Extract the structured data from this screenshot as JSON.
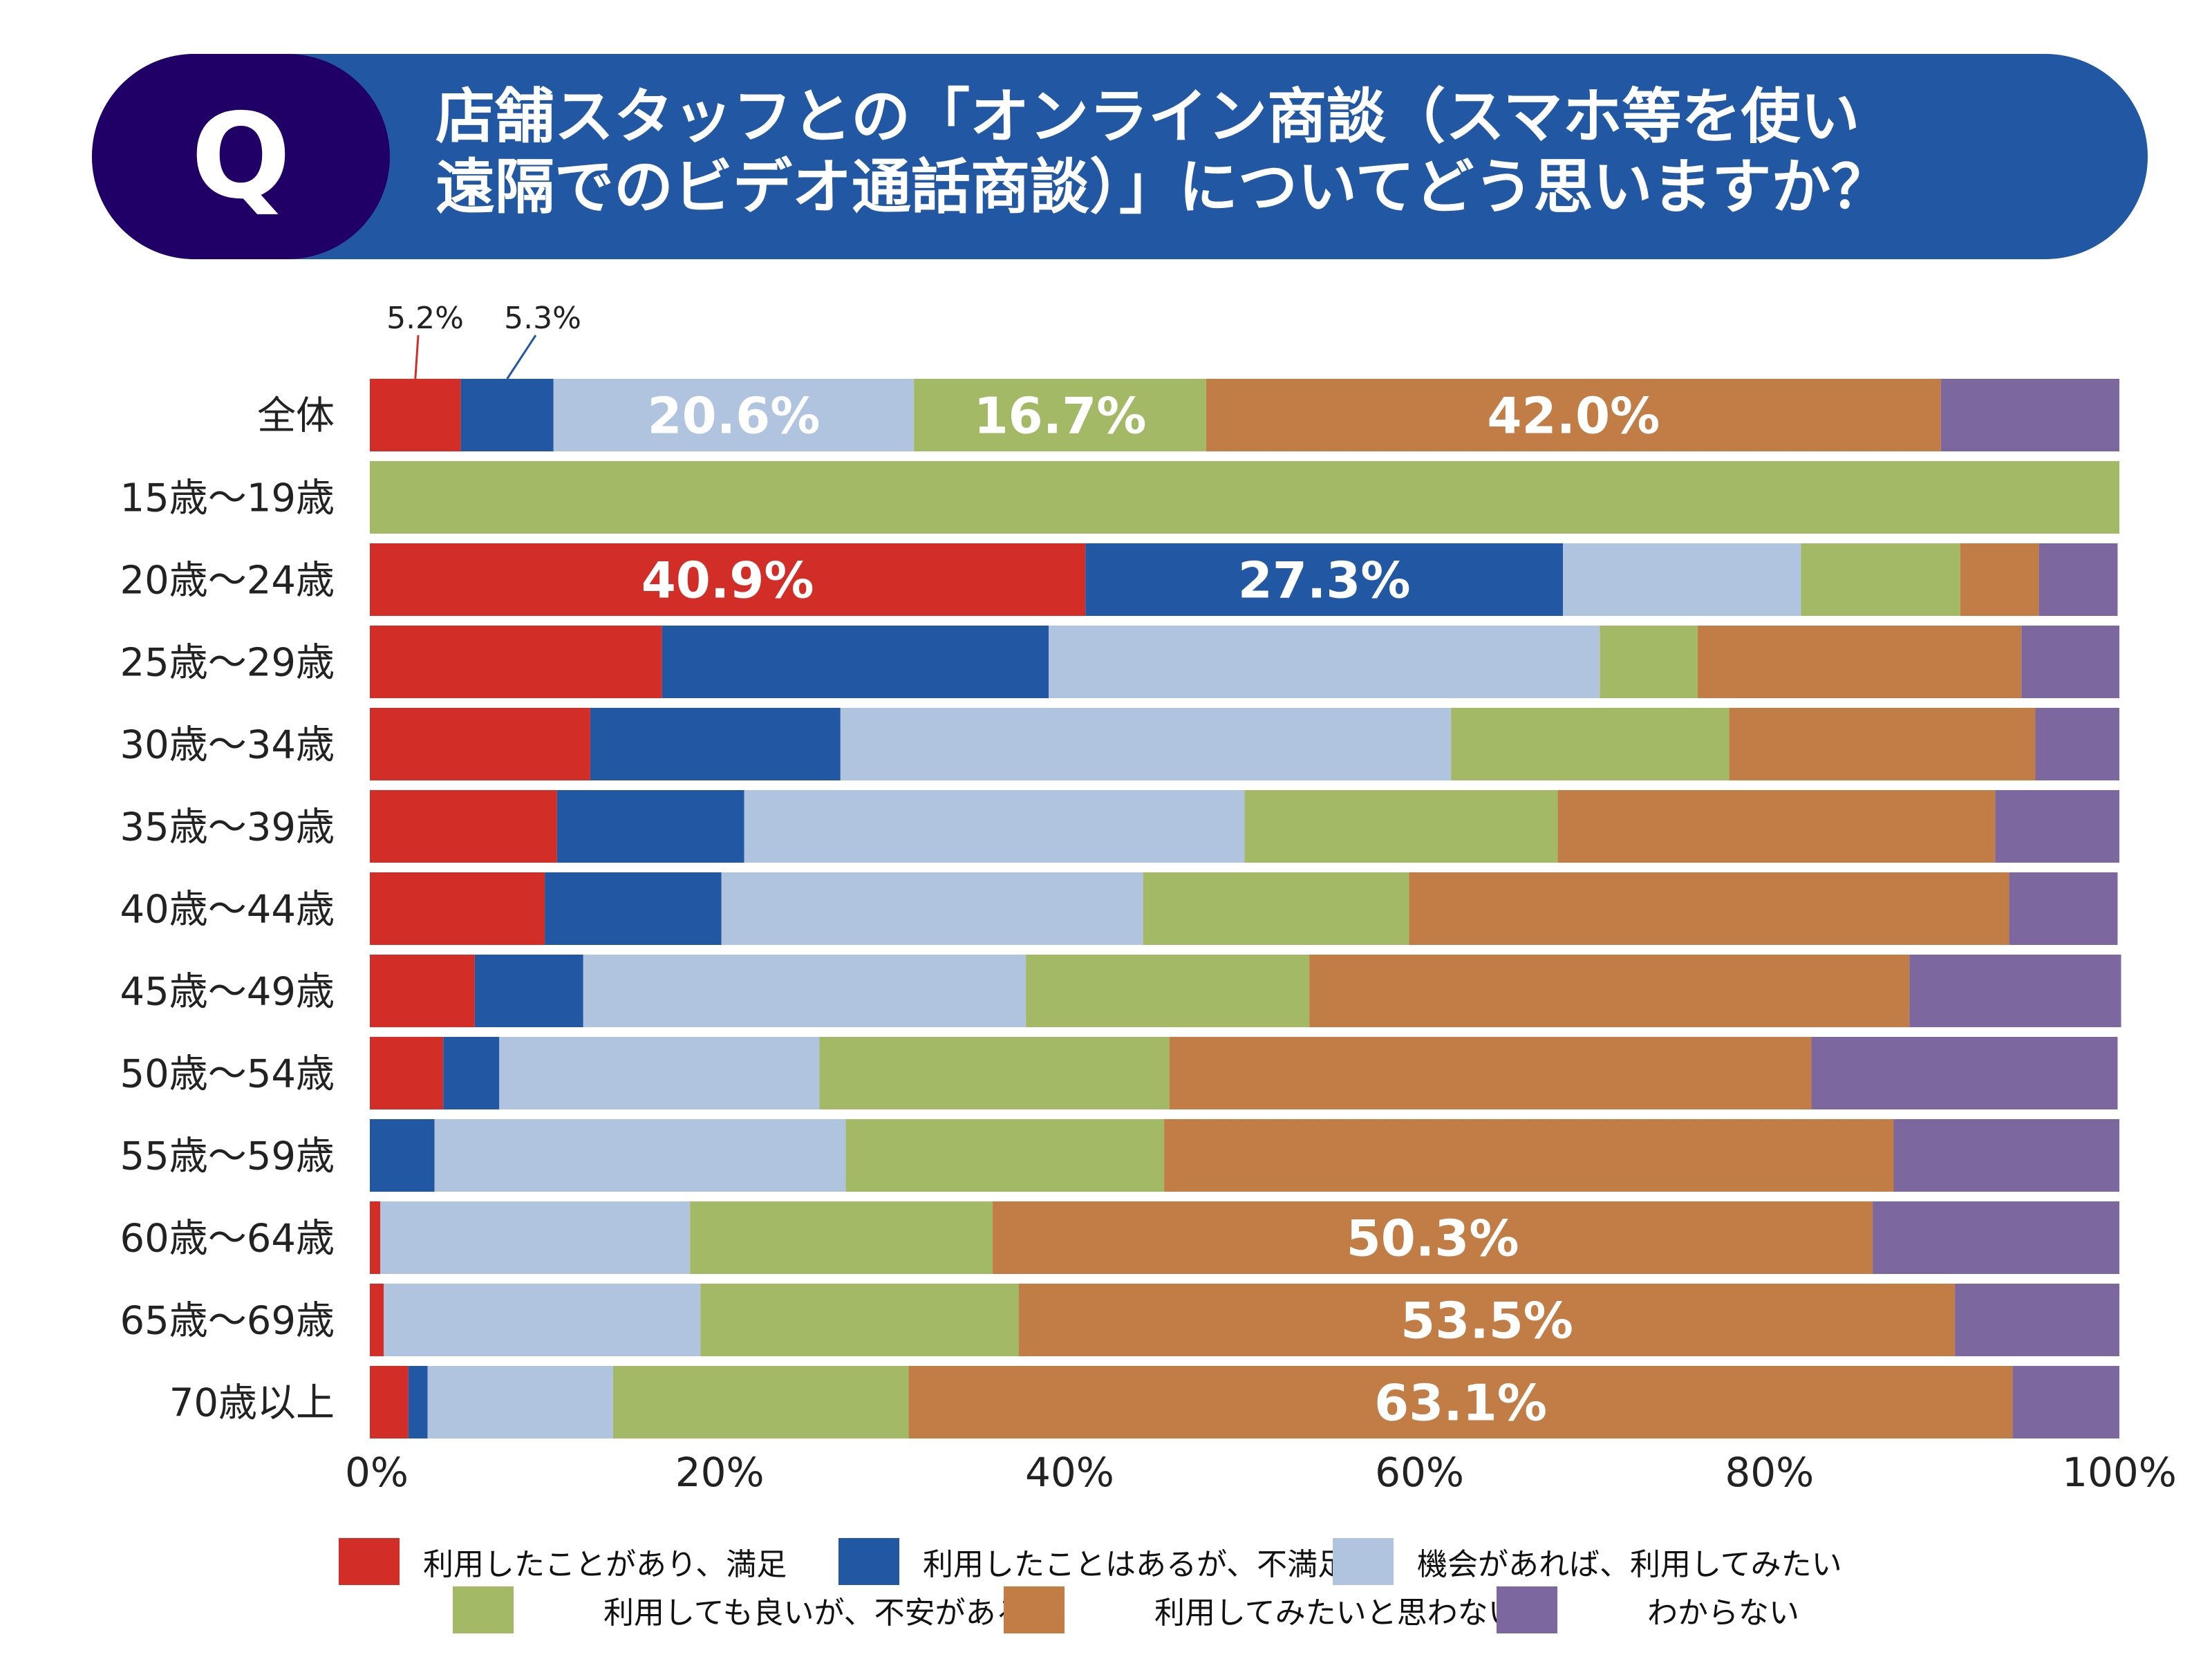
{
  "header": {
    "badge": "Q",
    "title_lines": [
      "店舗スタッフとの「オンライン商談（スマホ等を使い",
      "遠隔でのビデオ通話商談）」についてどう思いますか？"
    ]
  },
  "chart_data": {
    "type": "bar",
    "orientation": "horizontal",
    "stacked": true,
    "title": "店舗スタッフとの「オンライン商談（スマホ等を使い遠隔でのビデオ通話商談）」についてどう思いますか？",
    "xlim": [
      0,
      100
    ],
    "x_ticks": [
      "0%",
      "20%",
      "40%",
      "60%",
      "80%",
      "100%"
    ],
    "grid": false,
    "legend_position": "bottom",
    "categories": [
      "全体",
      "15歳～19歳",
      "20歳～24歳",
      "25歳～29歳",
      "30歳～34歳",
      "35歳～39歳",
      "40歳～44歳",
      "45歳～49歳",
      "50歳～54歳",
      "55歳～59歳",
      "60歳～64歳",
      "65歳～69歳",
      "70歳以上"
    ],
    "series": [
      {
        "name": "利用したことがあり、満足",
        "color": "#d22e27",
        "values": [
          5.2,
          0,
          40.9,
          16.7,
          12.6,
          10.7,
          10.0,
          6.0,
          4.2,
          0,
          0.6,
          0.8,
          2.2
        ]
      },
      {
        "name": "利用したことはあるが、不満足",
        "color": "#2257a4",
        "values": [
          5.3,
          0,
          27.3,
          22.1,
          14.3,
          10.7,
          10.1,
          6.2,
          3.2,
          3.7,
          0,
          0,
          1.1
        ]
      },
      {
        "name": "機会があれば、利用してみたい",
        "color": "#b0c3df",
        "values": [
          20.6,
          0,
          13.6,
          31.5,
          34.9,
          28.6,
          24.1,
          25.3,
          18.3,
          23.5,
          17.7,
          18.1,
          10.6
        ]
      },
      {
        "name": "利用しても良いが、不安がある",
        "color": "#a4b966",
        "values": [
          16.7,
          100,
          9.1,
          5.6,
          15.9,
          17.9,
          15.2,
          16.2,
          20.0,
          18.2,
          17.3,
          18.2,
          16.9
        ]
      },
      {
        "name": "利用してみたいと思わない",
        "color": "#c17d45",
        "values": [
          42.0,
          0,
          4.5,
          18.5,
          17.5,
          25.0,
          34.3,
          34.3,
          36.7,
          41.7,
          50.3,
          53.5,
          63.1
        ]
      },
      {
        "name": "わからない",
        "color": "#7c679f",
        "values": [
          10.2,
          0,
          4.5,
          5.6,
          4.8,
          7.1,
          6.2,
          12.1,
          17.5,
          12.9,
          14.1,
          9.4,
          6.1
        ]
      }
    ],
    "data_labels": [
      {
        "category": 0,
        "series": 0,
        "text": "5.2%",
        "style": "callout"
      },
      {
        "category": 0,
        "series": 1,
        "text": "5.3%",
        "style": "callout"
      },
      {
        "category": 0,
        "series": 2,
        "text": "20.6%"
      },
      {
        "category": 0,
        "series": 3,
        "text": "16.7%"
      },
      {
        "category": 0,
        "series": 4,
        "text": "42.0%"
      },
      {
        "category": 2,
        "series": 0,
        "text": "40.9%"
      },
      {
        "category": 2,
        "series": 1,
        "text": "27.3%"
      },
      {
        "category": 10,
        "series": 4,
        "text": "50.3%"
      },
      {
        "category": 11,
        "series": 4,
        "text": "53.5%"
      },
      {
        "category": 12,
        "series": 4,
        "text": "63.1%"
      }
    ]
  }
}
